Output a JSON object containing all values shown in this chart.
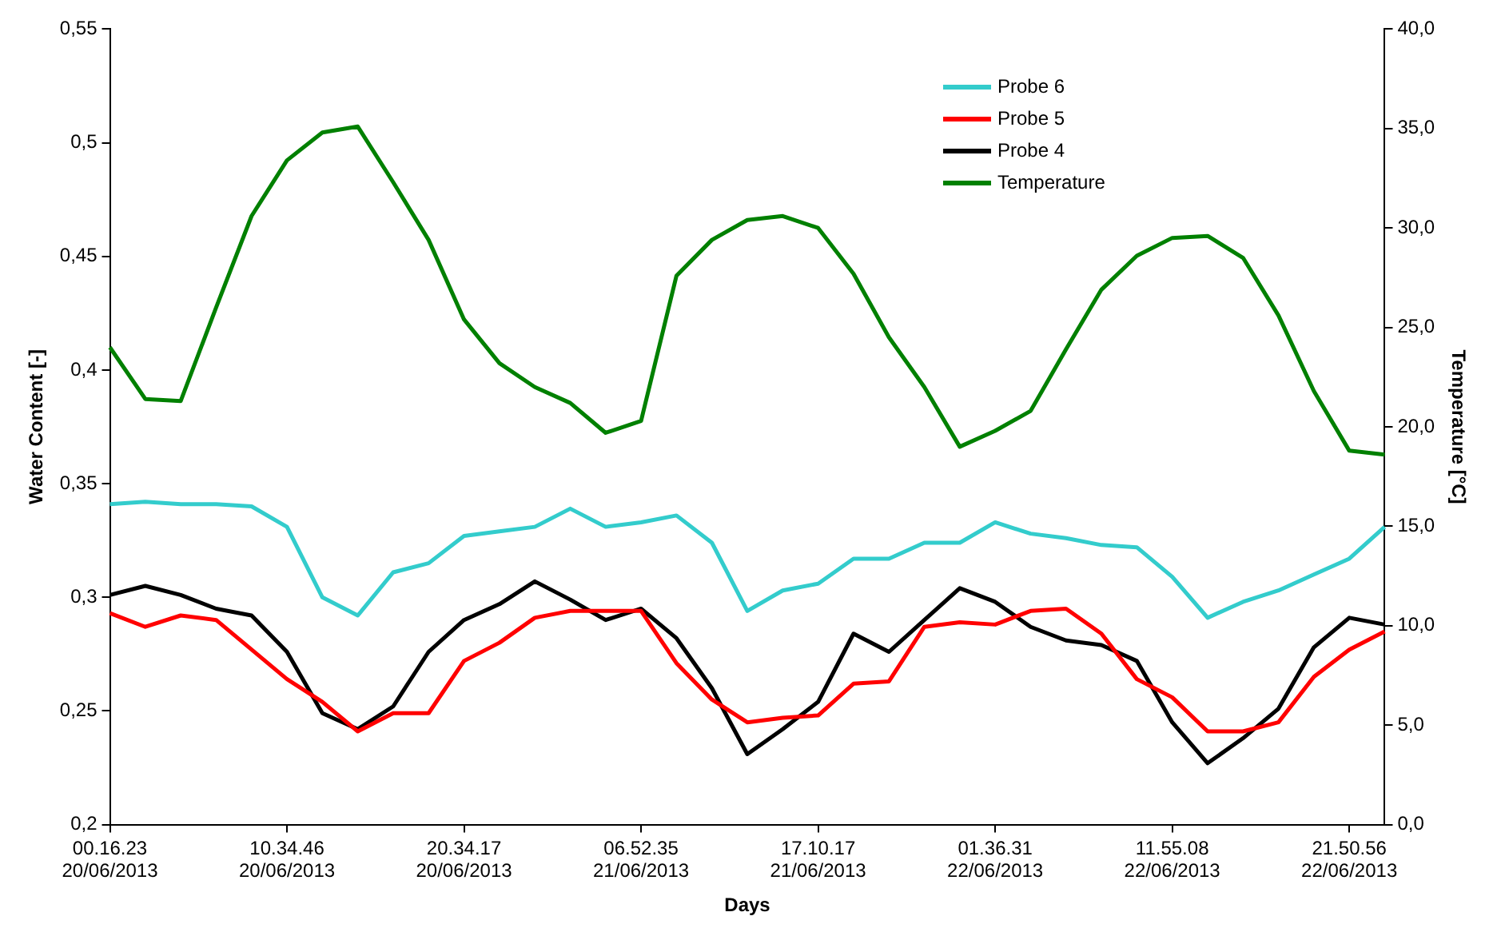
{
  "chart_data": {
    "type": "line",
    "xlabel": "Days",
    "ylabel": "Water Content [-]",
    "y2label": "Temperature [°C]",
    "categories": [
      "00.16.23\n20/06/2013",
      null,
      null,
      null,
      null,
      "10.34.46\n20/06/2013",
      null,
      null,
      null,
      null,
      "20.34.17\n20/06/2013",
      null,
      null,
      null,
      null,
      "06.52.35\n21/06/2013",
      null,
      null,
      null,
      null,
      "17.10.17\n21/06/2013",
      null,
      null,
      null,
      null,
      "01.36.31\n22/06/2013",
      null,
      null,
      null,
      null,
      "11.55.08\n22/06/2013",
      null,
      null,
      null,
      null,
      "21.50.56\n22/06/2013",
      null
    ],
    "series": [
      {
        "name": "Probe 6",
        "color": "#33cccc",
        "values": [
          0.341,
          0.342,
          0.341,
          0.341,
          0.34,
          0.331,
          0.3,
          0.292,
          0.311,
          0.315,
          0.327,
          0.329,
          0.331,
          0.339,
          0.331,
          0.333,
          0.336,
          0.324,
          0.294,
          0.303,
          0.306,
          0.317,
          0.317,
          0.324,
          0.324,
          0.333,
          0.328,
          0.326,
          0.323,
          0.322,
          0.309,
          0.291,
          0.298,
          0.303,
          0.31,
          0.317,
          0.331
        ]
      },
      {
        "name": "Probe 5",
        "color": "#ff0000",
        "values": [
          0.293,
          0.287,
          0.292,
          0.29,
          0.277,
          0.264,
          0.254,
          0.241,
          0.249,
          0.249,
          0.272,
          0.28,
          0.291,
          0.294,
          0.294,
          0.294,
          0.271,
          0.255,
          0.245,
          0.247,
          0.248,
          0.262,
          0.263,
          0.287,
          0.289,
          0.288,
          0.294,
          0.295,
          0.284,
          0.264,
          0.256,
          0.241,
          0.241,
          0.245,
          0.265,
          0.277,
          0.285
        ]
      },
      {
        "name": "Probe 4",
        "color": "#000000",
        "values": [
          0.301,
          0.305,
          0.301,
          0.295,
          0.292,
          0.276,
          0.249,
          0.242,
          0.252,
          0.276,
          0.29,
          0.297,
          0.307,
          0.299,
          0.29,
          0.295,
          0.282,
          0.26,
          0.231,
          0.242,
          0.254,
          0.284,
          0.276,
          0.29,
          0.304,
          0.298,
          0.287,
          0.281,
          0.279,
          0.272,
          0.245,
          0.227,
          0.238,
          0.251,
          0.278,
          0.291,
          0.288
        ]
      },
      {
        "name": "Temperature",
        "color": "#008000",
        "axis": "y2",
        "values": [
          24.0,
          21.4,
          21.3,
          26.0,
          30.6,
          33.4,
          34.8,
          35.1,
          32.3,
          29.4,
          25.4,
          23.2,
          22.0,
          21.2,
          19.7,
          20.3,
          27.6,
          29.4,
          30.4,
          30.6,
          30.0,
          27.7,
          24.5,
          22.0,
          19.0,
          19.8,
          20.8,
          23.9,
          26.9,
          28.6,
          29.5,
          29.6,
          28.5,
          25.6,
          21.8,
          18.8,
          18.6
        ]
      }
    ],
    "ylim": [
      0.2,
      0.55
    ],
    "yticks": [
      {
        "value": 0.2,
        "label": "0,2"
      },
      {
        "value": 0.25,
        "label": "0,25"
      },
      {
        "value": 0.3,
        "label": "0,3"
      },
      {
        "value": 0.35,
        "label": "0,35"
      },
      {
        "value": 0.4,
        "label": "0,4"
      },
      {
        "value": 0.45,
        "label": "0,45"
      },
      {
        "value": 0.5,
        "label": "0,5"
      },
      {
        "value": 0.55,
        "label": "0,55"
      }
    ],
    "y2lim": [
      0,
      40
    ],
    "y2ticks": [
      {
        "value": 0,
        "label": "0,0"
      },
      {
        "value": 5,
        "label": "5,0"
      },
      {
        "value": 10,
        "label": "10,0"
      },
      {
        "value": 15,
        "label": "15,0"
      },
      {
        "value": 20,
        "label": "20,0"
      },
      {
        "value": 25,
        "label": "25,0"
      },
      {
        "value": 30,
        "label": "30,0"
      },
      {
        "value": 35,
        "label": "35,0"
      },
      {
        "value": 40,
        "label": "40,0"
      }
    ],
    "grid": false,
    "legend": "top right",
    "marker": "none",
    "line_style": "solid"
  }
}
